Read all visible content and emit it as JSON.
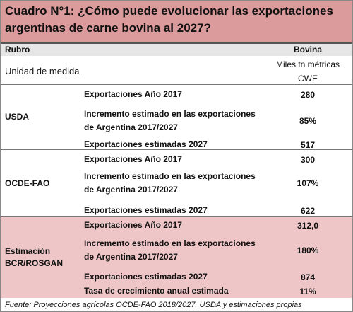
{
  "title": "Cuadro N°1: ¿Cómo puede evolucionar las exportaciones argentinas de carne bovina al 2027?",
  "header": {
    "col1": "Rubro",
    "col2": "Bovina"
  },
  "unit": {
    "label": "Unidad de medida",
    "value": "Miles tn métricas CWE"
  },
  "groups": [
    {
      "name": "USDA",
      "rows": [
        {
          "label": "Exportaciones Año 2017",
          "value": "280"
        },
        {
          "label": "Incremento estimado en las exportaciones de Argentina 2017/2027",
          "value": "85%"
        },
        {
          "label": "Exportaciones estimadas 2027",
          "value": "517"
        }
      ]
    },
    {
      "name": "OCDE-FAO",
      "rows": [
        {
          "label": "Exportaciones Año 2017",
          "value": "300"
        },
        {
          "label": "Incremento estimado en las exportaciones de Argentina 2017/2027",
          "value": "107%"
        },
        {
          "label": "Exportaciones estimadas 2027",
          "value": "622"
        }
      ]
    },
    {
      "name": "Estimación BCR/ROSGAN",
      "rows": [
        {
          "label": "Exportaciones Año 2017",
          "value": "312,0"
        },
        {
          "label": "Incremento estimado en las exportaciones de Argentina 2017/2027",
          "value": "180%"
        },
        {
          "label": "Exportaciones estimadas 2027",
          "value": "874"
        },
        {
          "label": "Tasa de crecimiento anual estimada",
          "value": "11%"
        }
      ]
    }
  ],
  "source": "Fuente: Proyecciones agrícolas OCDE-FAO 2018/2027, USDA y estimaciones propias"
}
